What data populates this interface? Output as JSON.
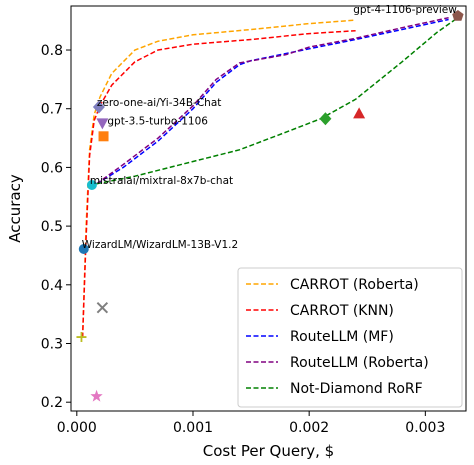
{
  "chart_data": {
    "type": "line",
    "xlabel": "Cost Per Query, $",
    "ylabel": "Accuracy",
    "xlim": [
      -5e-05,
      0.00335
    ],
    "ylim": [
      0.185,
      0.875
    ],
    "xticks": [
      0.0,
      0.001,
      0.002,
      0.003
    ],
    "xtick_labels": [
      "0.000",
      "0.001",
      "0.002",
      "0.003"
    ],
    "yticks": [
      0.2,
      0.3,
      0.4,
      0.5,
      0.6,
      0.7,
      0.8
    ],
    "ytick_labels": [
      "0.2",
      "0.3",
      "0.4",
      "0.5",
      "0.6",
      "0.7",
      "0.8"
    ],
    "legend_position": "lower right",
    "series": [
      {
        "name": "CARROT (Roberta)",
        "color": "#ffa500",
        "dash": "dashed",
        "x": [
          5e-05,
          8e-05,
          0.00011,
          0.00015,
          0.0002,
          0.0003,
          0.0005,
          0.0007,
          0.001,
          0.0015,
          0.002,
          0.0024
        ],
        "y": [
          0.31,
          0.5,
          0.63,
          0.69,
          0.72,
          0.76,
          0.8,
          0.815,
          0.826,
          0.835,
          0.845,
          0.851
        ]
      },
      {
        "name": "CARROT (KNN)",
        "color": "#ff0000",
        "dash": "dashed",
        "x": [
          5e-05,
          8e-05,
          0.00011,
          0.00015,
          0.0002,
          0.0003,
          0.0005,
          0.0007,
          0.001,
          0.0015,
          0.002,
          0.0024
        ],
        "y": [
          0.31,
          0.48,
          0.62,
          0.68,
          0.705,
          0.74,
          0.78,
          0.8,
          0.81,
          0.818,
          0.828,
          0.833
        ]
      },
      {
        "name": "RouteLLM (MF)",
        "color": "#0000ff",
        "dash": "dashed",
        "x": [
          0.00017,
          0.0004,
          0.0007,
          0.001,
          0.0012,
          0.0014,
          0.0015,
          0.0017,
          0.002,
          0.0024,
          0.0028,
          0.0032
        ],
        "y": [
          0.572,
          0.6,
          0.645,
          0.7,
          0.745,
          0.775,
          0.782,
          0.79,
          0.802,
          0.818,
          0.835,
          0.852
        ]
      },
      {
        "name": "RouteLLM (Roberta)",
        "color": "#800080",
        "dash": "dashed",
        "x": [
          0.00017,
          0.0004,
          0.0007,
          0.001,
          0.0012,
          0.0014,
          0.0016,
          0.0018,
          0.002,
          0.0024,
          0.0028,
          0.0032
        ],
        "y": [
          0.572,
          0.605,
          0.65,
          0.705,
          0.75,
          0.778,
          0.785,
          0.792,
          0.805,
          0.82,
          0.838,
          0.855
        ]
      },
      {
        "name": "Not-Diamond RoRF",
        "color": "#008000",
        "dash": "dashed",
        "x": [
          0.00017,
          0.0005,
          0.001,
          0.0014,
          0.0018,
          0.0021,
          0.0024,
          0.0028,
          0.0031,
          0.0033
        ],
        "y": [
          0.572,
          0.585,
          0.61,
          0.63,
          0.66,
          0.683,
          0.716,
          0.78,
          0.83,
          0.858
        ]
      }
    ],
    "points": [
      {
        "label": "gpt-4-1106-preview",
        "x": 0.00328,
        "y": 0.858,
        "marker": "pentagon",
        "color": "#8c564b"
      },
      {
        "label": "zero-one-ai/Yi-34B-Chat",
        "x": 0.00019,
        "y": 0.703,
        "marker": "diamond",
        "color": "#7f7fbf"
      },
      {
        "label": "gpt-3.5-turbo-1106",
        "x": 0.00022,
        "y": 0.675,
        "marker": "triangle-down",
        "color": "#9467bd"
      },
      {
        "label": "mistralai/mixtral-8x7b-chat",
        "x": 0.00013,
        "y": 0.57,
        "marker": "circle",
        "color": "#17becf"
      },
      {
        "label": "WizardLM/WizardLM-13B-V1.2",
        "x": 6e-05,
        "y": 0.461,
        "marker": "circle",
        "color": "#1f77b4"
      },
      {
        "label": "",
        "x": 0.00023,
        "y": 0.653,
        "marker": "square",
        "color": "#ff7f0e"
      },
      {
        "label": "",
        "x": 0.00243,
        "y": 0.692,
        "marker": "triangle-up",
        "color": "#d62728"
      },
      {
        "label": "",
        "x": 0.00214,
        "y": 0.683,
        "marker": "diamond",
        "color": "#2ca02c"
      },
      {
        "label": "",
        "x": 0.00022,
        "y": 0.361,
        "marker": "x",
        "color": "#7f7f7f"
      },
      {
        "label": "",
        "x": 4e-05,
        "y": 0.311,
        "marker": "plus",
        "color": "#bcbd22"
      },
      {
        "label": "",
        "x": 0.00017,
        "y": 0.21,
        "marker": "star",
        "color": "#e377c2"
      }
    ]
  }
}
